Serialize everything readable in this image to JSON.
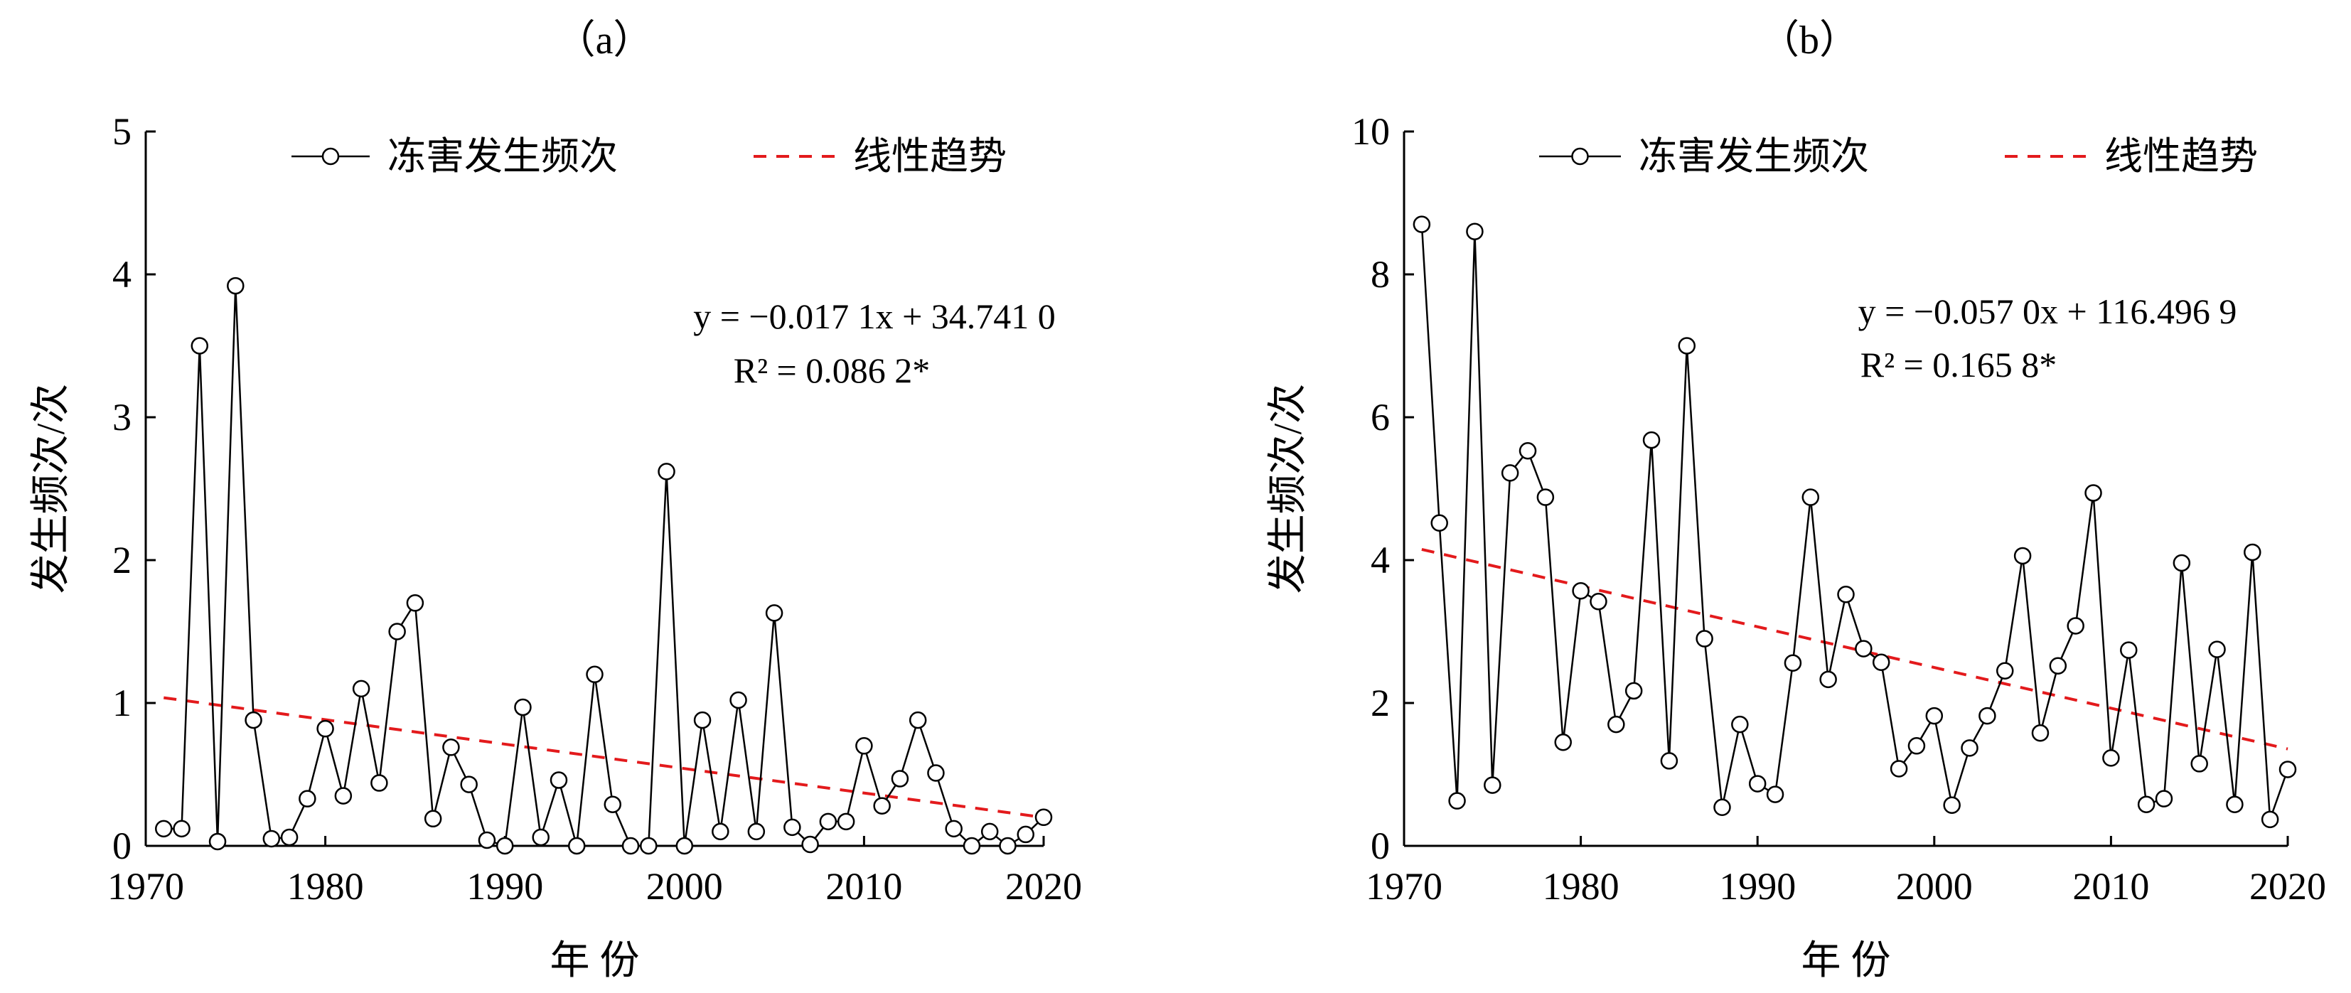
{
  "chart_data": [
    {
      "panel": "（a）",
      "type": "line",
      "xlabel": "年 份",
      "ylabel": "发生频次/次",
      "xlim": [
        1970,
        2020
      ],
      "ylim": [
        0,
        5
      ],
      "xticks": [
        "1970",
        "1980",
        "1990",
        "2000",
        "2010",
        "2020"
      ],
      "yticks": [
        "0",
        "1",
        "2",
        "3",
        "4",
        "5"
      ],
      "legend": [
        "冻害发生频次",
        "线性趋势"
      ],
      "equation": "y = −0.017 1x + 34.741 0",
      "r2": "R² = 0.086 2*",
      "trend": {
        "slope": -0.0171,
        "intercept": 34.741
      },
      "series": [
        {
          "name": "冻害发生频次",
          "x": [
            1971,
            1972,
            1973,
            1974,
            1975,
            1976,
            1977,
            1978,
            1979,
            1980,
            1981,
            1982,
            1983,
            1984,
            1985,
            1986,
            1987,
            1988,
            1989,
            1990,
            1991,
            1992,
            1993,
            1994,
            1995,
            1996,
            1997,
            1998,
            1999,
            2000,
            2001,
            2002,
            2003,
            2004,
            2005,
            2006,
            2007,
            2008,
            2009,
            2010,
            2011,
            2012,
            2013,
            2014,
            2015,
            2016,
            2017,
            2018,
            2019,
            2020
          ],
          "values": [
            0.12,
            0.12,
            3.5,
            0.03,
            3.92,
            0.88,
            0.05,
            0.06,
            0.33,
            0.82,
            0.35,
            1.1,
            0.44,
            1.5,
            1.7,
            0.19,
            0.69,
            0.43,
            0.04,
            0.0,
            0.97,
            0.06,
            0.46,
            0.0,
            1.2,
            0.29,
            0.0,
            0.0,
            2.62,
            0.0,
            0.88,
            0.1,
            1.02,
            0.1,
            1.63,
            0.13,
            0.01,
            0.17,
            0.17,
            0.7,
            0.28,
            0.47,
            0.88,
            0.51,
            0.12,
            0.0,
            0.1,
            0.0,
            0.08,
            0.2
          ]
        }
      ]
    },
    {
      "panel": "（b）",
      "type": "line",
      "xlabel": "年 份",
      "ylabel": "发生频次/次",
      "xlim": [
        1970,
        2020
      ],
      "ylim": [
        0,
        10
      ],
      "xticks": [
        "1970",
        "1980",
        "1990",
        "2000",
        "2010",
        "2020"
      ],
      "yticks": [
        "0",
        "2",
        "4",
        "6",
        "8",
        "10"
      ],
      "legend": [
        "冻害发生频次",
        "线性趋势"
      ],
      "equation": "y = −0.057 0x + 116.496 9",
      "r2": "R² = 0.165 8*",
      "trend": {
        "slope": -0.057,
        "intercept": 116.4969
      },
      "series": [
        {
          "name": "冻害发生频次",
          "x": [
            1971,
            1972,
            1973,
            1974,
            1975,
            1976,
            1977,
            1978,
            1979,
            1980,
            1981,
            1982,
            1983,
            1984,
            1985,
            1986,
            1987,
            1988,
            1989,
            1990,
            1991,
            1992,
            1993,
            1994,
            1995,
            1996,
            1997,
            1998,
            1999,
            2000,
            2001,
            2002,
            2003,
            2004,
            2005,
            2006,
            2007,
            2008,
            2009,
            2010,
            2011,
            2012,
            2013,
            2014,
            2015,
            2016,
            2017,
            2018,
            2019,
            2020
          ],
          "values": [
            8.7,
            4.52,
            0.63,
            8.6,
            0.85,
            5.22,
            5.53,
            4.88,
            1.45,
            3.57,
            3.42,
            1.7,
            2.17,
            5.68,
            1.19,
            7.0,
            2.9,
            0.54,
            1.7,
            0.87,
            0.72,
            2.56,
            4.88,
            2.33,
            3.52,
            2.76,
            2.57,
            1.08,
            1.4,
            1.82,
            0.57,
            1.37,
            1.82,
            2.45,
            4.06,
            1.58,
            2.52,
            3.08,
            4.94,
            1.23,
            2.74,
            0.58,
            0.66,
            3.96,
            1.15,
            2.75,
            0.58,
            4.11,
            0.37,
            1.07
          ]
        }
      ]
    }
  ]
}
